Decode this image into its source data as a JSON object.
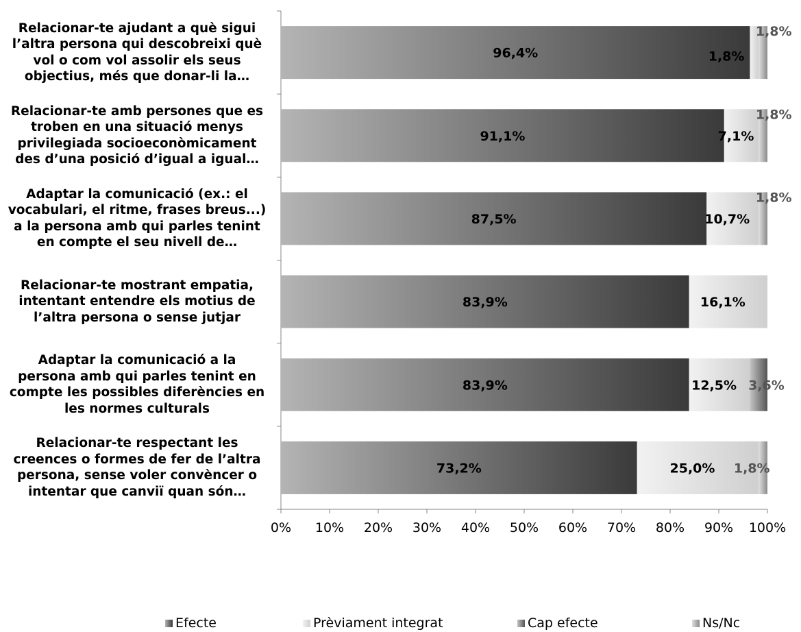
{
  "chart_data": {
    "type": "bar",
    "orientation": "horizontal",
    "stacked": true,
    "categories": [
      "Relacionar-te ajudant a què sigui l’altra persona qui descobreixi què vol o com vol assolir els seus objectius, més que donar-li la…",
      "Relacionar-te amb persones que es troben en una situació menys privilegiada socioeconòmicament des d’una posició d’igual a igual…",
      "Adaptar la comunicació (ex.: el vocabulari, el ritme, frases breus...) a la persona amb qui parles tenint en compte el seu nivell de…",
      "Relacionar-te mostrant empatia, intentant entendre els motius de l’altra persona o sense jutjar",
      "Adaptar la comunicació a la persona amb qui parles tenint en compte les possibles diferències en les normes culturals",
      "Relacionar-te respectant les creences o formes de fer de l’altra persona, sense voler convèncer o intentar que canviï quan són…"
    ],
    "category_lines": [
      [
        "Relacionar-te ajudant a què sigui",
        "l’altra persona qui descobreixi què",
        "vol o com vol assolir els seus",
        "objectius, més que donar-li la…"
      ],
      [
        "Relacionar-te amb persones que es",
        "troben en una situació menys",
        "privilegiada socioeconòmicament",
        "des d’una posició d’igual a igual…"
      ],
      [
        "Adaptar la comunicació (ex.: el",
        "vocabulari, el ritme, frases breus...)",
        "a la persona amb qui parles tenint",
        "en compte el seu nivell de…"
      ],
      [
        "Relacionar-te mostrant empatia,",
        "intentant entendre els motius de",
        "l’altra persona o sense jutjar"
      ],
      [
        "Adaptar la comunicació a la",
        "persona amb qui parles tenint en",
        "compte les possibles diferències en",
        "les normes culturals"
      ],
      [
        "Relacionar-te respectant les",
        "creences o formes de fer de l’altra",
        "persona, sense voler convèncer o",
        "intentar que canviï quan són…"
      ]
    ],
    "series": [
      {
        "name": "Efecte",
        "values": [
          96.4,
          91.1,
          87.5,
          83.9,
          83.9,
          73.2
        ],
        "labels": [
          "96,4%",
          "91,1%",
          "87,5%",
          "83,9%",
          "83,9%",
          "73,2%"
        ]
      },
      {
        "name": "Prèviament integrat",
        "values": [
          1.8,
          7.1,
          10.7,
          16.1,
          12.5,
          25.0
        ],
        "labels": [
          "1,8%",
          "7,1%",
          "10,7%",
          "16,1%",
          "12,5%",
          "25,0%"
        ]
      },
      {
        "name": "Cap efecte",
        "values": [
          0,
          0,
          0,
          0,
          3.6,
          0
        ],
        "labels": [
          "",
          "",
          "",
          "",
          "3,6%",
          ""
        ]
      },
      {
        "name": "Ns/Nc",
        "values": [
          1.8,
          1.8,
          1.8,
          0,
          0,
          1.8
        ],
        "labels": [
          "1,8%",
          "1,8%",
          "1,8%",
          "",
          "",
          "1,8%"
        ]
      }
    ],
    "xlim": [
      0,
      100
    ],
    "x_ticks": [
      "0%",
      "10%",
      "20%",
      "30%",
      "40%",
      "50%",
      "60%",
      "70%",
      "80%",
      "90%",
      "100%"
    ],
    "legend_position": "bottom",
    "colors": {
      "Efecte": [
        "#b4b4b4",
        "#3a3a3a"
      ],
      "Prèviament integrat": [
        "#f2f2f2",
        "#cfcfcf"
      ],
      "Cap efecte": [
        "#c4c4c4",
        "#555555"
      ],
      "Ns/Nc": [
        "#e0e0e0",
        "#8a8a8a"
      ]
    }
  }
}
